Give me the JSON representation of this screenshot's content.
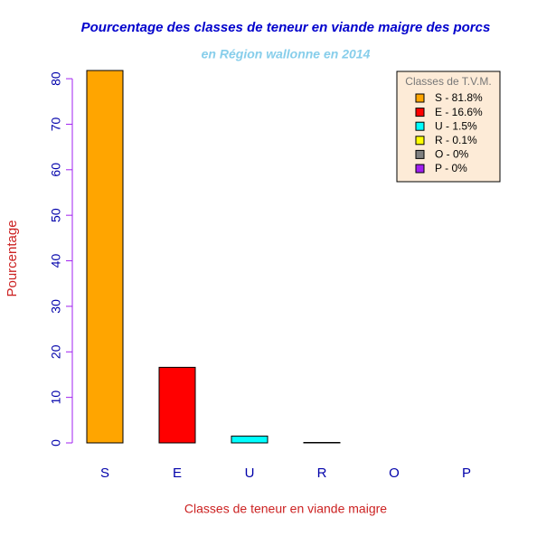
{
  "chart_data": {
    "type": "bar",
    "title": "Pourcentage des classes de teneur en viande maigre des porcs",
    "subtitle": "en Région wallonne en 2014",
    "x_label": "Classes de teneur en viande maigre",
    "y_label": "Pourcentage",
    "categories": [
      "S",
      "E",
      "U",
      "R",
      "O",
      "P"
    ],
    "values": [
      81.8,
      16.6,
      1.5,
      0.1,
      0,
      0
    ],
    "value_labels": [
      "S - 81.8%",
      "E - 16.6%",
      "U - 1.5%",
      "R - 0.1%",
      "O - 0%",
      "P - 0%"
    ],
    "colors": [
      "#ffa500",
      "#ff0000",
      "#00ffff",
      "#ffff00",
      "#808080",
      "#a020f0"
    ],
    "legend_title": "Classes de T.V.M.",
    "legend_position": "top-right",
    "ylim": [
      0,
      81.8
    ],
    "yticks": [
      0,
      10,
      20,
      30,
      40,
      50,
      60,
      70,
      80
    ],
    "grid": false
  }
}
